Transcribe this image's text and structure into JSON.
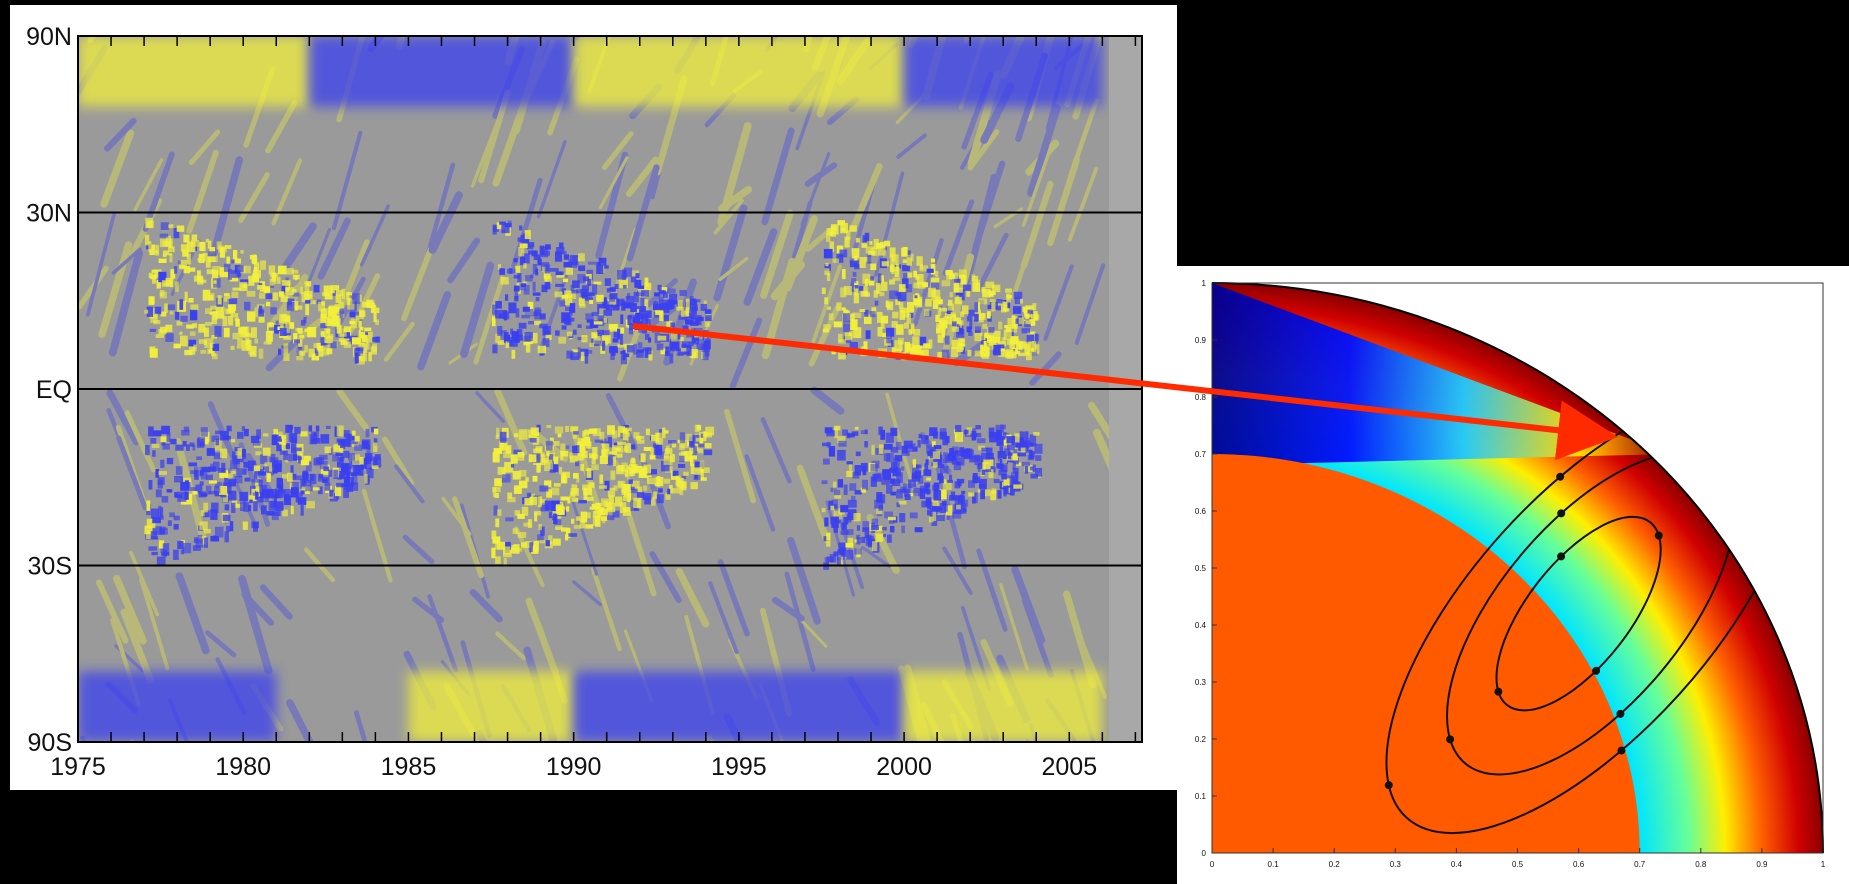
{
  "chart_data": [
    {
      "type": "heatmap",
      "title": "",
      "xlabel": "",
      "ylabel": "",
      "x_ticks": [
        "1975",
        "1980",
        "1985",
        "1990",
        "1995",
        "2000",
        "2005"
      ],
      "x_range": [
        1975,
        2007.2
      ],
      "y_ticks": [
        "90N",
        "30N",
        "EQ",
        "30S",
        "90S"
      ],
      "y_tick_lat": [
        1,
        0.5,
        0,
        -0.5,
        -1
      ],
      "y_axis_scale": "sine of latitude",
      "colors": {
        "positive": "#f2f03a",
        "negative": "#3a3ff0",
        "neutral": "#9a9a9a"
      },
      "features": [
        {
          "label": "cycle 21 northern band",
          "sign": "positive",
          "years": [
            1977,
            1984
          ],
          "lat_span": [
            0.1,
            0.5
          ]
        },
        {
          "label": "cycle 21 southern band",
          "sign": "negative",
          "years": [
            1977,
            1984
          ],
          "lat_span": [
            -0.5,
            -0.1
          ]
        },
        {
          "label": "cycle 22 northern band",
          "sign": "negative",
          "years": [
            1987.5,
            1994
          ],
          "lat_span": [
            0.1,
            0.5
          ]
        },
        {
          "label": "cycle 22 southern band",
          "sign": "positive",
          "years": [
            1987.5,
            1994
          ],
          "lat_span": [
            -0.5,
            -0.1
          ]
        },
        {
          "label": "cycle 23 northern band",
          "sign": "positive",
          "years": [
            1997.5,
            2004
          ],
          "lat_span": [
            0.1,
            0.5
          ]
        },
        {
          "label": "cycle 23 southern band",
          "sign": "negative",
          "years": [
            1997.5,
            2004
          ],
          "lat_span": [
            -0.5,
            -0.1
          ]
        },
        {
          "label": "north polar field",
          "sign": "positive",
          "years": [
            1975,
            1982
          ],
          "lat_span": [
            0.8,
            1
          ]
        },
        {
          "label": "north polar field",
          "sign": "negative",
          "years": [
            1982,
            1990
          ],
          "lat_span": [
            0.8,
            1
          ]
        },
        {
          "label": "north polar field",
          "sign": "positive",
          "years": [
            1990,
            2000
          ],
          "lat_span": [
            0.8,
            1
          ]
        },
        {
          "label": "north polar field",
          "sign": "negative",
          "years": [
            2000,
            2006
          ],
          "lat_span": [
            0.8,
            1
          ]
        },
        {
          "label": "south polar field",
          "sign": "negative",
          "years": [
            1975,
            1981
          ],
          "lat_span": [
            -1,
            -0.8
          ]
        },
        {
          "label": "south polar field",
          "sign": "positive",
          "years": [
            1985,
            1990
          ],
          "lat_span": [
            -1,
            -0.8
          ]
        },
        {
          "label": "south polar field",
          "sign": "negative",
          "years": [
            1990,
            2000
          ],
          "lat_span": [
            -1,
            -0.8
          ]
        },
        {
          "label": "south polar field",
          "sign": "positive",
          "years": [
            2000,
            2006
          ],
          "lat_span": [
            -1,
            -0.8
          ]
        }
      ],
      "data_end_year": 2006.2
    },
    {
      "type": "heatmap",
      "title": "",
      "xlabel": "",
      "ylabel": "",
      "x_ticks": [
        "0",
        "0.1",
        "0.2",
        "0.3",
        "0.4",
        "0.5",
        "0.6",
        "0.7",
        "0.8",
        "0.9",
        "1"
      ],
      "y_ticks": [
        "0",
        "0.1",
        "0.2",
        "0.3",
        "0.4",
        "0.5",
        "0.6",
        "0.7",
        "0.8",
        "0.9",
        "1"
      ],
      "xlim": [
        0,
        1
      ],
      "ylim": [
        0,
        1
      ],
      "inner_core_radius": 0.7,
      "inner_color": "#ff5a00",
      "colormap": "jet",
      "streamlines": [
        {
          "semi_major": 0.19,
          "semi_minor": 0.09,
          "center": [
            0.6,
            0.42
          ],
          "tilt_deg": -52
        },
        {
          "semi_major": 0.32,
          "semi_minor": 0.16,
          "center": [
            0.62,
            0.42
          ],
          "tilt_deg": -50
        },
        {
          "semi_major": 0.45,
          "semi_minor": 0.21,
          "center": [
            0.62,
            0.42
          ],
          "tilt_deg": -48
        }
      ]
    }
  ],
  "annotation": {
    "arrow_color": "#ff2a00"
  }
}
